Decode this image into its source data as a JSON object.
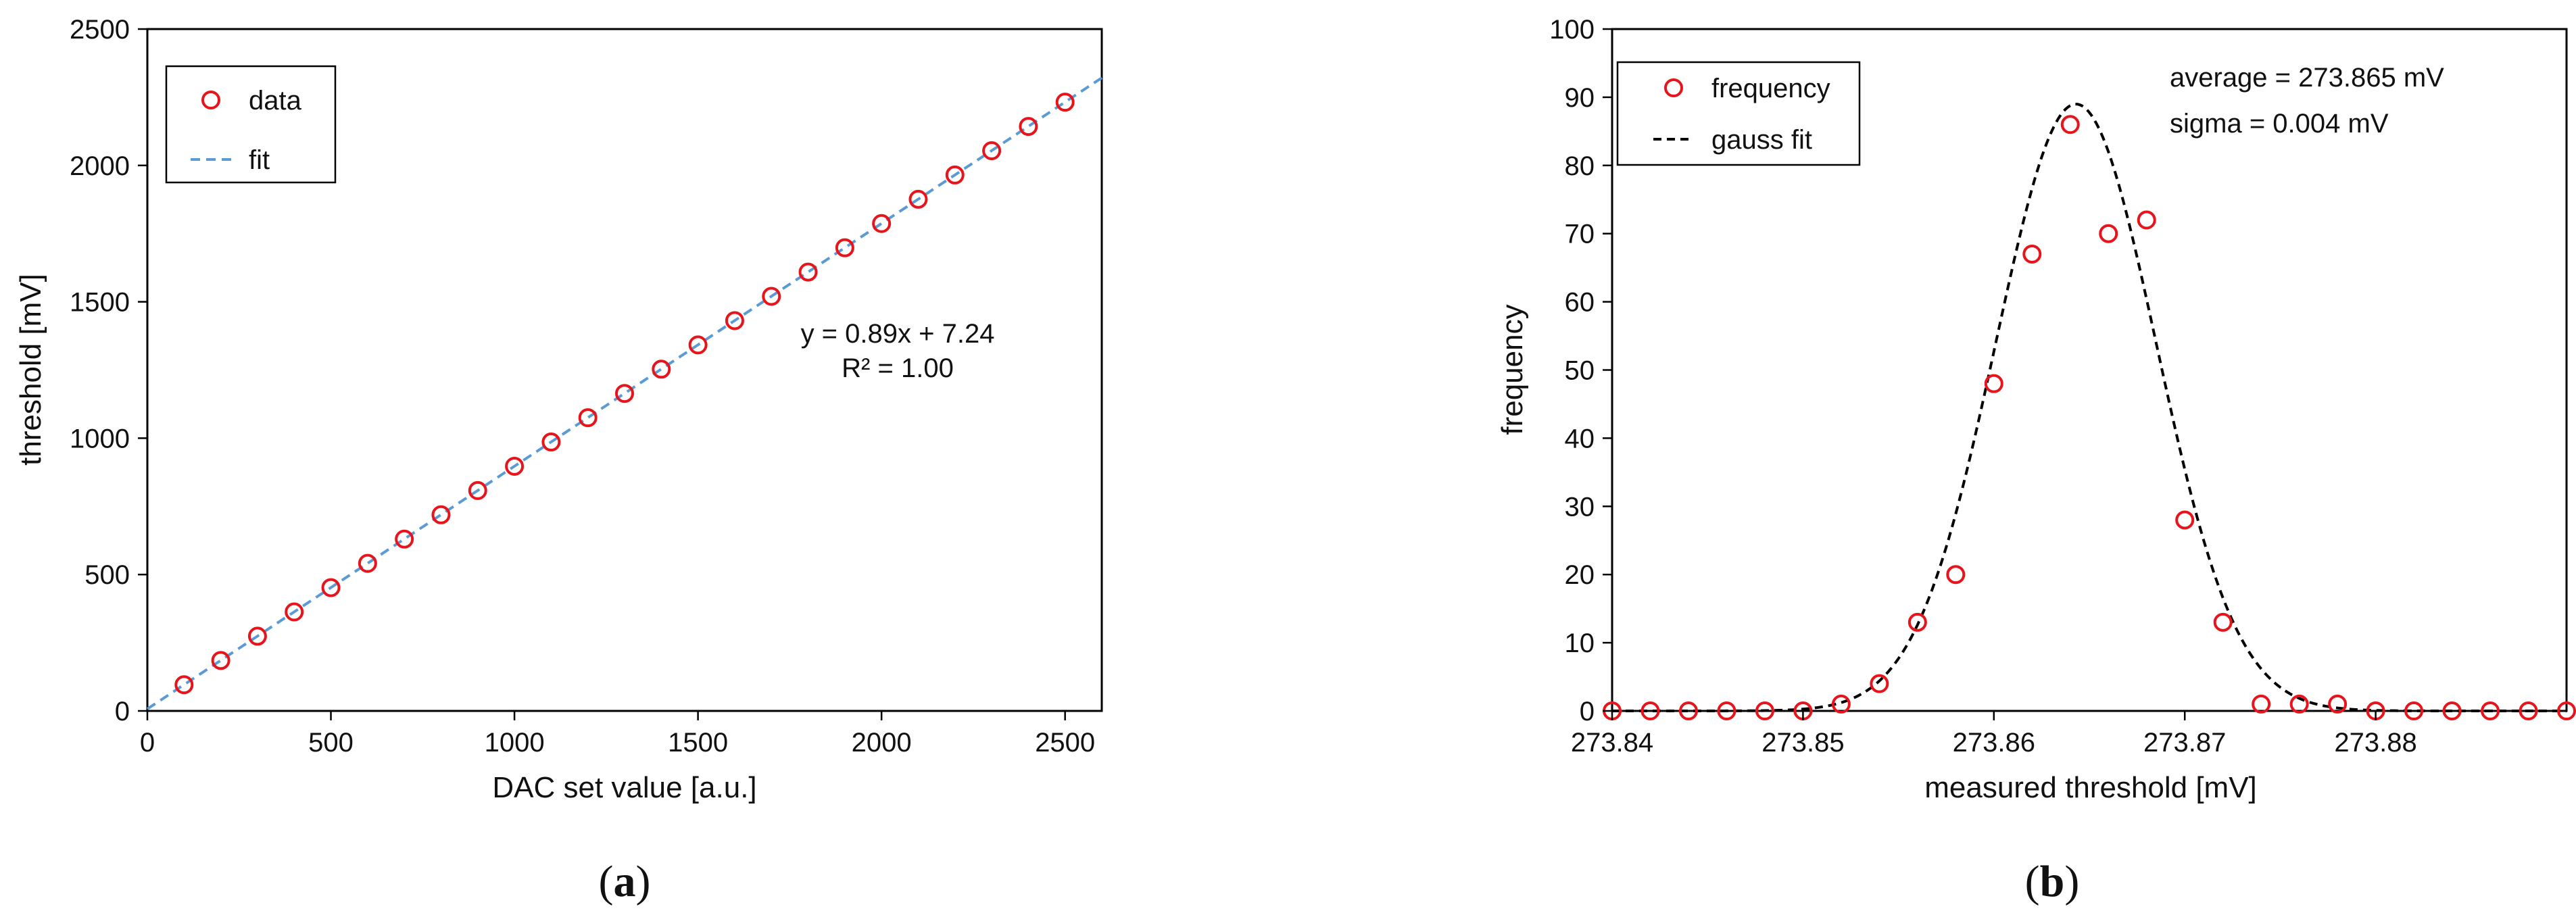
{
  "chart_data": [
    {
      "type": "scatter",
      "panel_label": "(a)",
      "panel_letter": "a",
      "xlabel": "DAC set value [a.u.]",
      "ylabel": "threshold  [mV]",
      "xlim": [
        0,
        2600
      ],
      "ylim": [
        0,
        2500
      ],
      "xticks": [
        0,
        500,
        1000,
        1500,
        2000,
        2500
      ],
      "yticks": [
        0,
        500,
        1000,
        1500,
        2000,
        2500
      ],
      "grid": false,
      "legend_position": "top-left",
      "annotation_lines": [
        "y = 0.89x + 7.24",
        "R² = 1.00"
      ],
      "series": [
        {
          "name": "data",
          "kind": "markers",
          "color": "#e8141b",
          "x": [
            100,
            200,
            300,
            400,
            500,
            600,
            700,
            800,
            900,
            1000,
            1100,
            1200,
            1300,
            1400,
            1500,
            1600,
            1700,
            1800,
            1900,
            2000,
            2100,
            2200,
            2300,
            2400,
            2500
          ],
          "y": [
            96,
            185,
            274,
            363,
            452,
            541,
            630,
            719,
            808,
            897,
            986,
            1075,
            1164,
            1253,
            1342,
            1431,
            1520,
            1609,
            1698,
            1787,
            1876,
            1965,
            2054,
            2143,
            2232
          ]
        },
        {
          "name": "fit",
          "kind": "dashed-line",
          "color": "#5b9bd5",
          "x": [
            0,
            2600
          ],
          "y": [
            7.24,
            2321.24
          ]
        }
      ]
    },
    {
      "type": "scatter",
      "panel_label": "(b)",
      "panel_letter": "b",
      "xlabel": "measured threshold  [mV]",
      "ylabel": "frequency",
      "xlim": [
        273.84,
        273.89
      ],
      "ylim": [
        0,
        100
      ],
      "xticks": [
        273.84,
        273.85,
        273.86,
        273.87,
        273.88
      ],
      "xtick_labels": [
        "273.84",
        "273.85",
        "273.86",
        "273.87",
        "273.88"
      ],
      "yticks": [
        0,
        10,
        20,
        30,
        40,
        50,
        60,
        70,
        80,
        90,
        100
      ],
      "grid": false,
      "legend_position": "top-left",
      "annotation_lines": [
        "average = 273.865 mV",
        "sigma = 0.004 mV"
      ],
      "series": [
        {
          "name": "frequency",
          "kind": "markers",
          "color": "#e8141b",
          "x": [
            273.84,
            273.842,
            273.844,
            273.846,
            273.848,
            273.85,
            273.852,
            273.854,
            273.856,
            273.858,
            273.86,
            273.862,
            273.864,
            273.866,
            273.868,
            273.87,
            273.872,
            273.874,
            273.876,
            273.878,
            273.88,
            273.882,
            273.884,
            273.886,
            273.888,
            273.89
          ],
          "y": [
            0,
            0,
            0,
            0,
            0,
            0,
            1,
            4,
            13,
            20,
            48,
            67,
            86,
            70,
            72,
            28,
            13,
            1,
            1,
            1,
            0,
            0,
            0,
            0,
            0,
            0
          ]
        },
        {
          "name": "gauss fit",
          "kind": "dashed-curve",
          "color": "#000000",
          "gauss": {
            "amplitude": 89,
            "mean": 273.8643,
            "sigma": 0.0042
          }
        }
      ]
    }
  ]
}
